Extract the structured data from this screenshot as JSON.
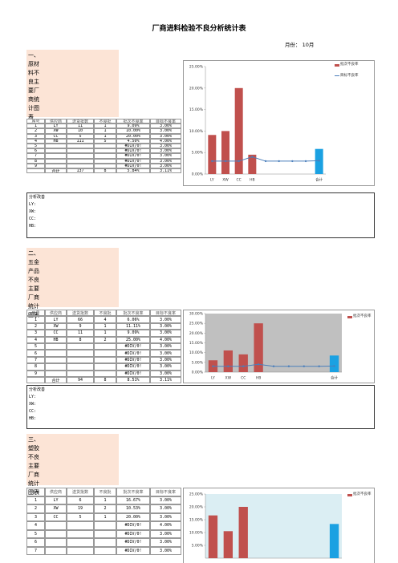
{
  "title": "厂商进料检验不良分析统计表",
  "month_label": "月份：",
  "month": "10月",
  "sections": [
    {
      "heading": "一、原材料不良主要厂商统计图表",
      "table": {
        "columns": [
          "序号",
          "供应商",
          "送货批数",
          "不良批",
          "批次不良率",
          "目标不良率"
        ],
        "rows": [
          [
            "1",
            "LY",
            "11",
            "1",
            "9.09%",
            "3.00%"
          ],
          [
            "2",
            "XW",
            "10",
            "1",
            "10.00%",
            "3.00%"
          ],
          [
            "3",
            "CC",
            "5",
            "1",
            "20.00%",
            "3.00%"
          ],
          [
            "4",
            "HB",
            "111",
            "5",
            "4.50%",
            "4.00%"
          ],
          [
            "5",
            null,
            null,
            null,
            "#DIV/0!",
            "3.00%"
          ],
          [
            "6",
            null,
            null,
            null,
            "#DIV/0!",
            "3.00%"
          ],
          [
            "7",
            null,
            null,
            null,
            "#DIV/0!",
            "3.00%"
          ],
          [
            "8",
            null,
            null,
            null,
            "#DIV/0!",
            "3.00%"
          ],
          [
            "9",
            null,
            null,
            null,
            "#DIV/0!",
            "3.00%"
          ]
        ],
        "total": {
          "label": "合计",
          "cells": [
            "137",
            "8",
            "5.84%",
            "3.11%"
          ]
        }
      },
      "analysis": {
        "title": "分析改善",
        "items": [
          "LY:",
          "XW:",
          "CC:",
          "HB:"
        ]
      }
    },
    {
      "heading": "二、五金产品不良主要厂商统计图表",
      "table": {
        "columns": [
          "序号",
          "供应商",
          "送货批数",
          "不良批",
          "批次不良率",
          "目标不良率"
        ],
        "rows": [
          [
            "1",
            "LY",
            "66",
            "4",
            "6.06%",
            "3.00%"
          ],
          [
            "2",
            "XW",
            "9",
            "1",
            "11.11%",
            "3.00%"
          ],
          [
            "3",
            "CC",
            "11",
            "1",
            "9.09%",
            "3.00%"
          ],
          [
            "4",
            "HB",
            "8",
            "2",
            "25.00%",
            "4.00%"
          ],
          [
            "5",
            null,
            null,
            null,
            "#DIV/0!",
            "3.00%"
          ],
          [
            "6",
            null,
            null,
            null,
            "#DIV/0!",
            "3.00%"
          ],
          [
            "7",
            null,
            null,
            null,
            "#DIV/0!",
            "3.00%"
          ],
          [
            "8",
            null,
            null,
            null,
            "#DIV/0!",
            "3.00%"
          ],
          [
            "9",
            null,
            null,
            null,
            "#DIV/0!",
            "3.00%"
          ]
        ],
        "total": {
          "label": "合计",
          "cells": [
            "94",
            "8",
            "8.51%",
            "3.11%"
          ]
        }
      },
      "analysis": {
        "title": "分析改善",
        "items": [
          "LY:",
          "XW:",
          "CC:",
          "HB:"
        ]
      }
    },
    {
      "heading": "三、塑胶不良主要厂商统计图表",
      "table": {
        "columns": [
          "序号",
          "供应商",
          "送货批数",
          "不良批",
          "批次不良率",
          "目标不良率"
        ],
        "rows": [
          [
            "1",
            "LY",
            "6",
            "1",
            "16.67%",
            "3.00%"
          ],
          [
            "2",
            "XW",
            "19",
            "2",
            "10.53%",
            "3.00%"
          ],
          [
            "3",
            "CC",
            "5",
            "1",
            "20.00%",
            "3.00%"
          ],
          [
            "4",
            null,
            null,
            null,
            "#DIV/0!",
            "4.00%"
          ],
          [
            "5",
            null,
            null,
            null,
            "#DIV/0!",
            "3.00%"
          ],
          [
            "6",
            null,
            null,
            null,
            "#DIV/0!",
            "3.00%"
          ],
          [
            "7",
            null,
            null,
            null,
            "#DIV/0!",
            "3.00%"
          ]
        ]
      }
    }
  ],
  "chart_data": [
    {
      "type": "combo",
      "categories": [
        "LY",
        "XW",
        "CC",
        "HB",
        null,
        null,
        null,
        null,
        "合计"
      ],
      "plot_background": "#ffffff",
      "total_color": "#1ba1e2",
      "series": [
        {
          "name": "批次不良率",
          "type": "bar",
          "color": "#c0504d",
          "values": [
            9.09,
            10,
            20,
            4.5,
            null,
            null,
            null,
            null,
            5.84
          ]
        },
        {
          "name": "目标不良率",
          "type": "line",
          "color": "#4a7ebb",
          "values": [
            3,
            3,
            3,
            4,
            3,
            3,
            3,
            3,
            3.11
          ]
        }
      ],
      "ylim": [
        0,
        25
      ],
      "yticks": [
        {
          "value": 0,
          "label": "0.00%"
        },
        {
          "value": 5,
          "label": "5.00%"
        },
        {
          "value": 10,
          "label": "10.00%"
        },
        {
          "value": 15,
          "label": "15.00%"
        },
        {
          "value": 20,
          "label": "20.00%"
        },
        {
          "value": 25,
          "label": "25.00%"
        }
      ]
    },
    {
      "type": "combo",
      "categories": [
        "LY",
        "XW",
        "CC",
        "HB",
        null,
        null,
        null,
        null,
        "合计"
      ],
      "plot_background": "#c0c0c0",
      "total_color": "#1ba1e2",
      "series": [
        {
          "name": "批次不良率",
          "type": "bar",
          "color": "#c0504d",
          "values": [
            6.06,
            11.11,
            9.09,
            25,
            null,
            null,
            null,
            null,
            8.51
          ]
        },
        {
          "type": "line",
          "color": "#4a7ebb",
          "values": [
            3,
            3,
            3,
            4,
            3,
            3,
            3,
            3,
            3.11
          ]
        }
      ],
      "ylim": [
        0,
        30
      ],
      "yticks": [
        {
          "value": 0,
          "label": "0.00%"
        },
        {
          "value": 5,
          "label": "5.00%"
        },
        {
          "value": 10,
          "label": "10.00%"
        },
        {
          "value": 15,
          "label": "15.00%"
        },
        {
          "value": 20,
          "label": "20.00%"
        },
        {
          "value": 25,
          "label": "25.00%"
        },
        {
          "value": 30,
          "label": "30.00%"
        }
      ]
    },
    {
      "type": "combo",
      "categories": [
        null,
        null,
        null,
        null,
        null,
        null,
        null,
        null,
        null
      ],
      "plot_background": "#dbeef3",
      "total_color": "#1ba1e2",
      "series": [
        {
          "name": "批次不良率",
          "type": "bar",
          "color": "#c0504d",
          "values": [
            16.67,
            10.53,
            20,
            null,
            null,
            null,
            null,
            null,
            13.33
          ]
        }
      ],
      "ylim": [
        0,
        25
      ],
      "yticks": [
        {
          "value": 5,
          "label": "5.00%"
        },
        {
          "value": 10,
          "label": "10.00%"
        },
        {
          "value": 15,
          "label": "15.00%"
        },
        {
          "value": 20,
          "label": "20.00%"
        },
        {
          "value": 25,
          "label": "25.00%"
        }
      ]
    }
  ]
}
